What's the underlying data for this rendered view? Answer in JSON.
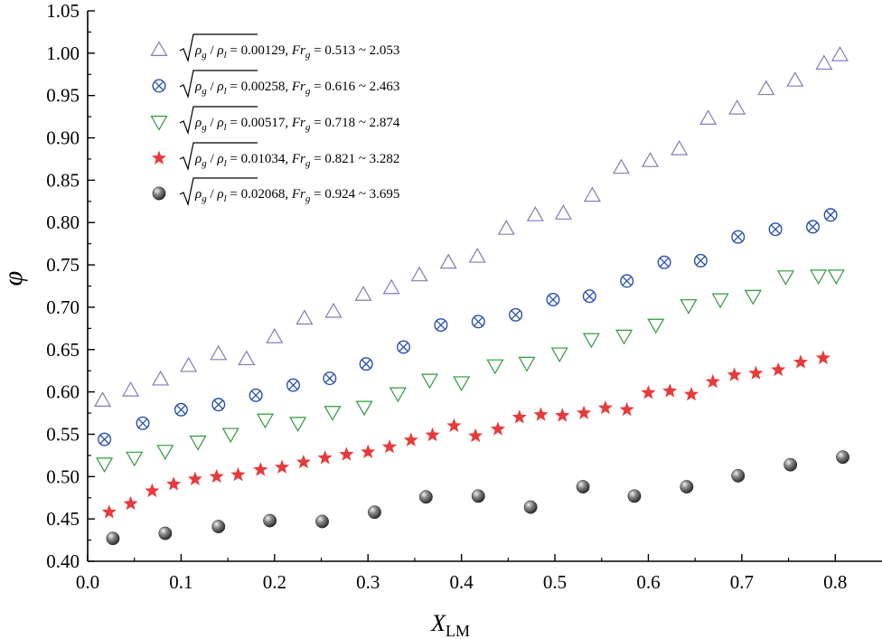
{
  "chart_data": {
    "type": "scatter",
    "title": "",
    "xlabel": "X",
    "xlabel_sub": "LM",
    "ylabel": "φ",
    "xlim": [
      0.0,
      0.85
    ],
    "ylim": [
      0.4,
      1.05
    ],
    "xticks": [
      "0.0",
      "0.1",
      "0.2",
      "0.3",
      "0.4",
      "0.5",
      "0.6",
      "0.7",
      "0.8"
    ],
    "xtick_values": [
      0.0,
      0.1,
      0.2,
      0.3,
      0.4,
      0.5,
      0.6,
      0.7,
      0.8
    ],
    "yticks": [
      "0.40",
      "0.45",
      "0.50",
      "0.55",
      "0.60",
      "0.65",
      "0.70",
      "0.75",
      "0.80",
      "0.85",
      "0.90",
      "0.95",
      "1.00",
      "1.05"
    ],
    "ytick_values": [
      0.4,
      0.45,
      0.5,
      0.55,
      0.6,
      0.65,
      0.7,
      0.75,
      0.8,
      0.85,
      0.9,
      0.95,
      1.0,
      1.05
    ],
    "grid": false,
    "legend_position": "top-left",
    "series": [
      {
        "name": "√(ρg / ρl) = 0.00129, Frg = 0.513 ~ 2.053",
        "legend": {
          "ratio": "0.00129",
          "range": "0.513 ~ 2.053"
        },
        "marker": "triangle-up",
        "color": "#8878b8",
        "x": [
          0.016,
          0.046,
          0.078,
          0.108,
          0.14,
          0.17,
          0.2,
          0.232,
          0.263,
          0.295,
          0.325,
          0.355,
          0.386,
          0.417,
          0.448,
          0.479,
          0.509,
          0.54,
          0.571,
          0.602,
          0.633,
          0.664,
          0.695,
          0.726,
          0.757,
          0.788,
          0.805
        ],
        "y": [
          0.59,
          0.602,
          0.615,
          0.631,
          0.645,
          0.639,
          0.665,
          0.687,
          0.695,
          0.715,
          0.723,
          0.738,
          0.753,
          0.76,
          0.793,
          0.809,
          0.811,
          0.832,
          0.865,
          0.873,
          0.887,
          0.923,
          0.935,
          0.958,
          0.968,
          0.988,
          0.998
        ]
      },
      {
        "name": "√(ρg / ρl) = 0.00258, Frg = 0.616 ~ 2.463",
        "legend": {
          "ratio": "0.00258",
          "range": "0.616 ~ 2.463"
        },
        "marker": "circle-x",
        "color": "#2850b0",
        "x": [
          0.018,
          0.059,
          0.1,
          0.14,
          0.18,
          0.22,
          0.259,
          0.298,
          0.338,
          0.378,
          0.418,
          0.458,
          0.498,
          0.537,
          0.577,
          0.617,
          0.656,
          0.696,
          0.736,
          0.776,
          0.795
        ],
        "y": [
          0.544,
          0.563,
          0.579,
          0.585,
          0.596,
          0.608,
          0.616,
          0.633,
          0.653,
          0.679,
          0.683,
          0.691,
          0.709,
          0.713,
          0.731,
          0.753,
          0.755,
          0.783,
          0.792,
          0.795,
          0.809
        ]
      },
      {
        "name": "√(ρg / ρl) = 0.00517, Frg = 0.718 ~ 2.874",
        "legend": {
          "ratio": "0.00517",
          "range": "0.718 ~ 2.874"
        },
        "marker": "triangle-down",
        "color": "#2e9a3c",
        "x": [
          0.018,
          0.05,
          0.083,
          0.118,
          0.153,
          0.19,
          0.225,
          0.262,
          0.296,
          0.332,
          0.366,
          0.4,
          0.436,
          0.47,
          0.505,
          0.539,
          0.574,
          0.608,
          0.643,
          0.677,
          0.712,
          0.747,
          0.782,
          0.801
        ],
        "y": [
          0.515,
          0.522,
          0.53,
          0.541,
          0.55,
          0.567,
          0.563,
          0.576,
          0.582,
          0.598,
          0.614,
          0.611,
          0.631,
          0.634,
          0.645,
          0.662,
          0.666,
          0.679,
          0.702,
          0.709,
          0.713,
          0.736,
          0.737,
          0.737
        ]
      },
      {
        "name": "√(ρg / ρl) = 0.01034, Frg = 0.821 ~ 3.282",
        "legend": {
          "ratio": "0.01034",
          "range": "0.821 ~ 3.282"
        },
        "marker": "star",
        "color": "#e83a3a",
        "x": [
          0.023,
          0.046,
          0.069,
          0.092,
          0.115,
          0.138,
          0.161,
          0.185,
          0.208,
          0.231,
          0.254,
          0.277,
          0.3,
          0.323,
          0.346,
          0.369,
          0.392,
          0.415,
          0.439,
          0.462,
          0.485,
          0.508,
          0.531,
          0.554,
          0.577,
          0.6,
          0.623,
          0.646,
          0.669,
          0.692,
          0.715,
          0.739,
          0.763,
          0.787
        ],
        "y": [
          0.458,
          0.468,
          0.483,
          0.491,
          0.497,
          0.5,
          0.502,
          0.508,
          0.511,
          0.517,
          0.522,
          0.526,
          0.529,
          0.535,
          0.543,
          0.549,
          0.56,
          0.548,
          0.556,
          0.57,
          0.573,
          0.572,
          0.575,
          0.581,
          0.579,
          0.599,
          0.601,
          0.597,
          0.612,
          0.62,
          0.622,
          0.626,
          0.635,
          0.64
        ]
      },
      {
        "name": "√(ρg / ρl) = 0.02068, Frg = 0.924 ~ 3.695",
        "legend": {
          "ratio": "0.02068",
          "range": "0.924 ~ 3.695"
        },
        "marker": "sphere",
        "color": "#555555",
        "x": [
          0.027,
          0.083,
          0.14,
          0.195,
          0.251,
          0.307,
          0.362,
          0.418,
          0.474,
          0.53,
          0.585,
          0.641,
          0.696,
          0.752,
          0.808
        ],
        "y": [
          0.427,
          0.433,
          0.441,
          0.448,
          0.447,
          0.458,
          0.476,
          0.477,
          0.464,
          0.488,
          0.477,
          0.488,
          0.501,
          0.514,
          0.523
        ]
      }
    ]
  }
}
